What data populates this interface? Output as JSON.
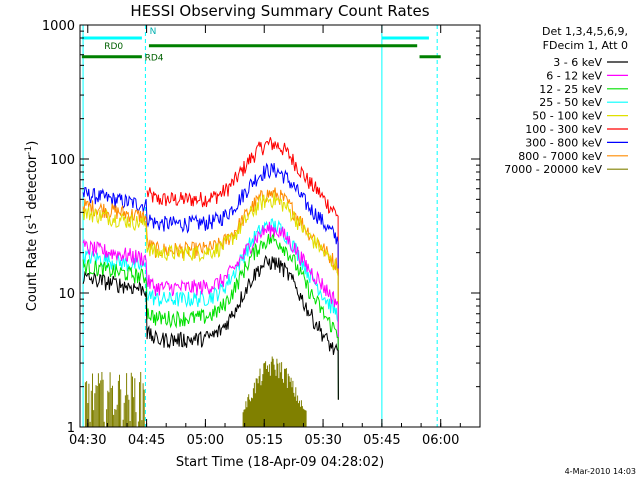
{
  "chart_data": {
    "type": "line",
    "title": "HESSI Observing Summary Count Rates",
    "xlabel": "Start Time (18-Apr-09 04:28:02)",
    "ylabel_main": "Count Rate (s",
    "ylabel_exp1": "-1",
    "ylabel_mid": " detector",
    "ylabel_exp2": "-1",
    "ylabel_end": ")",
    "y_scale": "log",
    "ylim": [
      1,
      1000
    ],
    "xlim_hours": [
      4.467,
      6.167
    ],
    "x_ticks": [
      {
        "label": "04:30",
        "h": 4.5
      },
      {
        "label": "04:45",
        "h": 4.75
      },
      {
        "label": "05:00",
        "h": 5.0
      },
      {
        "label": "05:15",
        "h": 5.25
      },
      {
        "label": "05:30",
        "h": 5.5
      },
      {
        "label": "05:45",
        "h": 5.75
      },
      {
        "label": "06:00",
        "h": 6.0
      }
    ],
    "y_ticks": [
      {
        "label": "1",
        "v": 1
      },
      {
        "label": "10",
        "v": 10
      },
      {
        "label": "100",
        "v": 100
      },
      {
        "label": "1000",
        "v": 1000
      }
    ],
    "legend_header": [
      "Det 1,3,4,5,6,9,",
      "FDecim 1, Att 0"
    ],
    "series": [
      {
        "name": "3 - 6 keV",
        "color": "#000000",
        "pre": 13,
        "flat": 4.5,
        "peak": 17,
        "trough": 6
      },
      {
        "name": "6 - 12 keV",
        "color": "#ff00ff",
        "pre": 22,
        "flat": 11,
        "peak": 30,
        "trough": 13
      },
      {
        "name": "12 - 25 keV",
        "color": "#00e000",
        "pre": 16,
        "flat": 6.5,
        "peak": 25,
        "trough": 9
      },
      {
        "name": "25 - 50 keV",
        "color": "#00ffff",
        "pre": 19,
        "flat": 9,
        "peak": 32,
        "trough": 11
      },
      {
        "name": "50 - 100 keV",
        "color": "#e0e000",
        "pre": 40,
        "flat": 20,
        "peak": 50,
        "trough": 24
      },
      {
        "name": "100 - 300 keV",
        "color": "#ff0000",
        "pre": null,
        "flat": 50,
        "peak": 130,
        "trough": 60
      },
      {
        "name": "300 - 800 keV",
        "color": "#0000ff",
        "pre": 55,
        "flat": 33,
        "peak": 83,
        "trough": 40
      },
      {
        "name": "800 - 7000 keV",
        "color": "#ff8c00",
        "pre": 45,
        "flat": 21,
        "peak": 55,
        "trough": 25
      },
      {
        "name": "7000 - 20000 keV",
        "color": "#808000",
        "pre": 2.2,
        "flat": null,
        "peak": 3.2,
        "trough": null
      }
    ],
    "flags": [
      {
        "label": "N",
        "color": "#00ffff",
        "segments": [
          [
            4.475,
            4.73
          ],
          [
            5.75,
            5.95
          ]
        ],
        "level": 800
      },
      {
        "label": "RD0",
        "color": "#008000",
        "segments": [
          [
            4.76,
            5.9
          ]
        ],
        "level": 700
      },
      {
        "label": "RD4",
        "color": "#008000",
        "segments": [
          [
            4.475,
            4.73
          ],
          [
            5.91,
            6.0
          ]
        ],
        "level": 580
      }
    ],
    "night_lines": [
      4.48,
      5.75
    ],
    "saa_lines": [
      4.745,
      5.985
    ],
    "event_window": [
      4.75,
      5.565
    ]
  },
  "footer": {
    "date": "4-Mar-2010 14:03"
  }
}
